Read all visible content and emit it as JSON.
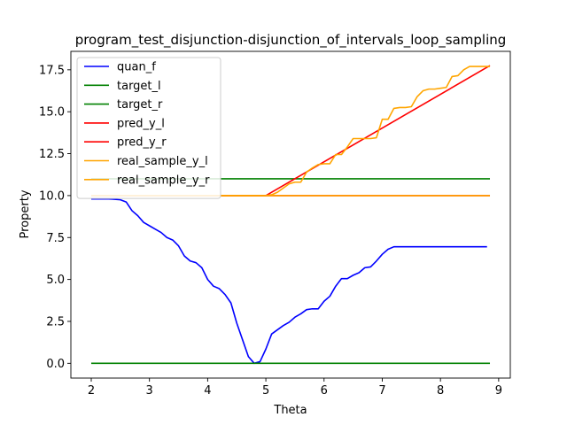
{
  "chart_data": {
    "type": "line",
    "title": "program_test_disjunction-disjunction_of_intervals_loop_sampling",
    "xlabel": "Theta",
    "ylabel": "Property",
    "xlim": [
      1.65,
      9.2
    ],
    "ylim": [
      -0.88,
      18.6
    ],
    "xticks": [
      2,
      3,
      4,
      5,
      6,
      7,
      8,
      9
    ],
    "yticks": [
      0.0,
      2.5,
      5.0,
      7.5,
      10.0,
      12.5,
      15.0,
      17.5
    ],
    "ytick_labels": [
      "0.0",
      "2.5",
      "5.0",
      "7.5",
      "10.0",
      "12.5",
      "15.0",
      "17.5"
    ],
    "grid": false,
    "legend_position": "top-left",
    "series": [
      {
        "name": "quan_f",
        "color": "#0000ff",
        "x": [
          2.0,
          2.1,
          2.2,
          2.3,
          2.4,
          2.5,
          2.6,
          2.7,
          2.8,
          2.9,
          3.0,
          3.1,
          3.2,
          3.3,
          3.4,
          3.5,
          3.6,
          3.7,
          3.8,
          3.9,
          4.0,
          4.1,
          4.2,
          4.3,
          4.4,
          4.5,
          4.6,
          4.7,
          4.8,
          4.9,
          5.0,
          5.1,
          5.2,
          5.3,
          5.4,
          5.5,
          5.6,
          5.7,
          5.8,
          5.9,
          6.0,
          6.1,
          6.2,
          6.3,
          6.4,
          6.5,
          6.6,
          6.7,
          6.8,
          6.9,
          7.0,
          7.1,
          7.2,
          7.3,
          7.4,
          7.5,
          7.6,
          7.7,
          7.8,
          7.9,
          8.0,
          8.1,
          8.2,
          8.3,
          8.4,
          8.5,
          8.6,
          8.7,
          8.8
        ],
        "y": [
          9.8,
          9.8,
          9.8,
          9.8,
          9.78,
          9.75,
          9.62,
          9.1,
          8.8,
          8.4,
          8.2,
          8.0,
          7.8,
          7.5,
          7.35,
          7.0,
          6.4,
          6.1,
          6.0,
          5.7,
          5.0,
          4.6,
          4.45,
          4.1,
          3.6,
          2.4,
          1.4,
          0.4,
          0.0,
          0.1,
          0.85,
          1.75,
          2.0,
          2.25,
          2.45,
          2.75,
          2.95,
          3.2,
          3.25,
          3.25,
          3.7,
          4.0,
          4.6,
          5.05,
          5.05,
          5.25,
          5.4,
          5.7,
          5.75,
          6.1,
          6.5,
          6.8,
          6.95,
          6.95,
          6.95,
          6.95,
          6.95,
          6.95,
          6.95,
          6.95,
          6.95,
          6.95,
          6.95,
          6.95,
          6.95,
          6.95,
          6.95,
          6.95,
          6.95
        ]
      },
      {
        "name": "target_l",
        "color": "#008000",
        "x": [
          2.0,
          8.85
        ],
        "y": [
          0.0,
          0.0
        ]
      },
      {
        "name": "target_r",
        "color": "#008000",
        "x": [
          2.0,
          8.85
        ],
        "y": [
          11.0,
          11.0
        ]
      },
      {
        "name": "pred_y_l",
        "color": "#ff0000",
        "x": [
          2.0,
          5.0,
          8.85
        ],
        "y": [
          10.0,
          10.0,
          17.75
        ]
      },
      {
        "name": "pred_y_r",
        "color": "#ff0000",
        "x": [
          2.0,
          8.85
        ],
        "y": [
          10.0,
          10.0
        ]
      },
      {
        "name": "real_sample_y_l",
        "color": "#ffa500",
        "x": [
          2.0,
          5.0,
          5.1,
          5.2,
          5.3,
          5.4,
          5.5,
          5.6,
          5.7,
          5.8,
          5.9,
          6.0,
          6.1,
          6.2,
          6.3,
          6.4,
          6.5,
          6.6,
          6.7,
          6.8,
          6.9,
          7.0,
          7.1,
          7.2,
          7.3,
          7.4,
          7.5,
          7.6,
          7.7,
          7.8,
          7.9,
          8.0,
          8.1,
          8.2,
          8.3,
          8.4,
          8.5,
          8.6,
          8.7,
          8.8,
          8.85
        ],
        "y": [
          10.0,
          10.0,
          10.05,
          10.2,
          10.45,
          10.7,
          10.8,
          10.8,
          11.4,
          11.65,
          11.85,
          11.9,
          11.9,
          12.45,
          12.45,
          12.9,
          13.4,
          13.4,
          13.4,
          13.4,
          13.45,
          14.55,
          14.55,
          15.2,
          15.25,
          15.25,
          15.3,
          15.9,
          16.25,
          16.35,
          16.35,
          16.4,
          16.45,
          17.1,
          17.15,
          17.5,
          17.7,
          17.7,
          17.7,
          17.7,
          17.7
        ]
      },
      {
        "name": "real_sample_y_r",
        "color": "#ffa500",
        "x": [
          2.0,
          8.85
        ],
        "y": [
          10.0,
          10.0
        ]
      }
    ]
  }
}
